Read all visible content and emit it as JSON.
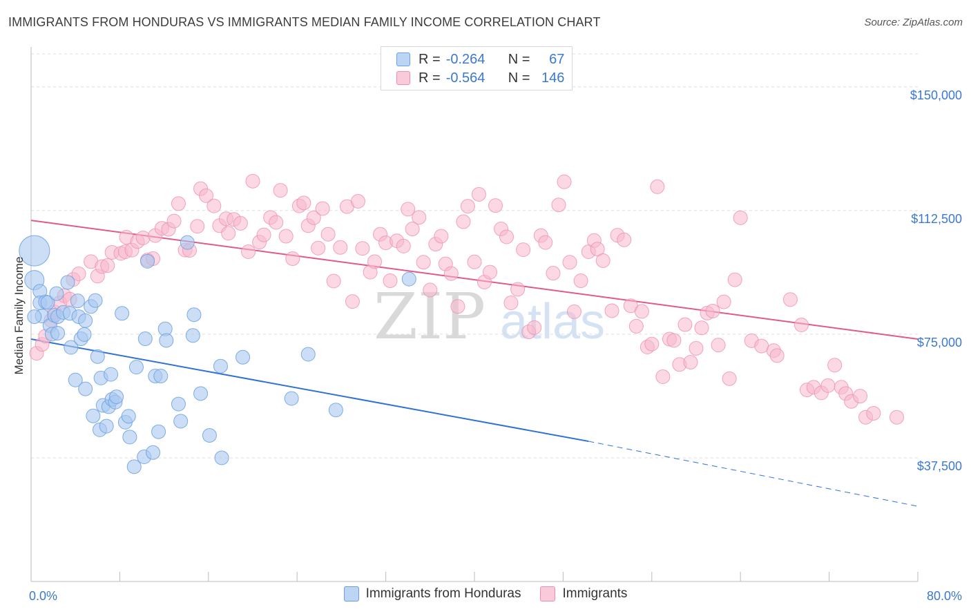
{
  "header": {
    "title": "IMMIGRANTS FROM HONDURAS VS IMMIGRANTS MEDIAN FAMILY INCOME CORRELATION CHART",
    "source": "Source: ZipAtlas.com"
  },
  "watermark": {
    "zip": "ZIP",
    "atlas": "atlas"
  },
  "legend": {
    "r_label": "R =",
    "n_label": "N =",
    "honduras": {
      "r": "-0.264",
      "n": "67"
    },
    "immigrants": {
      "r": "-0.564",
      "n": "146"
    }
  },
  "colors": {
    "honduras_fill": "#a9c8f0",
    "honduras_stroke": "#6a9fe0",
    "honduras_line": "#2f72d6",
    "immigrants_fill": "#f7b8cc",
    "immigrants_stroke": "#ee8fb0",
    "immigrants_line": "#e2588a",
    "axis_value": "#3b78d0",
    "grid": "#dddddd"
  },
  "chart_data": {
    "type": "scatter",
    "title": "IMMIGRANTS FROM HONDURAS VS IMMIGRANTS MEDIAN FAMILY INCOME CORRELATION CHART",
    "xlabel": "",
    "ylabel": "Median Family Income",
    "xlim": [
      0,
      80
    ],
    "ylim": [
      0,
      160000
    ],
    "x_tick_labels": [
      "0.0%",
      "80.0%"
    ],
    "y_ticks": [
      37500,
      75000,
      112500,
      150000
    ],
    "y_tick_labels": [
      "$37,500",
      "$75,000",
      "$112,500",
      "$150,000"
    ],
    "grid": true,
    "legend_position": "top-center",
    "series": [
      {
        "name": "Immigrants from Honduras",
        "key": "honduras",
        "trend": {
          "x0": 0,
          "y0": 73500,
          "x1": 50.3,
          "y1": 42500,
          "dash_to_x": 80,
          "dash_to_y": 22800
        },
        "points": [
          [
            0.3,
            100300,
            2.2
          ],
          [
            0.3,
            91400,
            1.4
          ],
          [
            0.8,
            88000,
            1.0
          ],
          [
            0.8,
            84500,
            1.0
          ],
          [
            1.0,
            80500,
            1.0
          ],
          [
            1.3,
            84800,
            1.0
          ],
          [
            1.5,
            84600,
            1.0
          ],
          [
            1.7,
            77600,
            1.0
          ],
          [
            1.9,
            75000,
            1.0
          ],
          [
            2.1,
            80700,
            1.0
          ],
          [
            2.3,
            87300,
            1.0
          ],
          [
            2.4,
            80300,
            1.0
          ],
          [
            2.4,
            75300,
            1.0
          ],
          [
            2.9,
            81600,
            1.0
          ],
          [
            3.3,
            90700,
            1.0
          ],
          [
            3.5,
            81300,
            1.0
          ],
          [
            3.6,
            71000,
            1.0
          ],
          [
            4.2,
            85100,
            1.0
          ],
          [
            4.3,
            80300,
            1.0
          ],
          [
            4.5,
            73600,
            1.0
          ],
          [
            4.0,
            61100,
            1.0
          ],
          [
            4.9,
            79100,
            1.0
          ],
          [
            4.9,
            58400,
            1.0
          ],
          [
            4.8,
            74900,
            1.0
          ],
          [
            5.4,
            83400,
            1.0
          ],
          [
            5.6,
            50200,
            1.0
          ],
          [
            5.8,
            85200,
            1.0
          ],
          [
            6.0,
            68200,
            1.0
          ],
          [
            6.2,
            46000,
            1.0
          ],
          [
            6.3,
            61700,
            1.0
          ],
          [
            6.5,
            53400,
            1.0
          ],
          [
            6.8,
            47100,
            1.0
          ],
          [
            7.0,
            53000,
            1.0
          ],
          [
            7.2,
            62800,
            1.0
          ],
          [
            7.3,
            55200,
            1.0
          ],
          [
            7.6,
            54400,
            1.0
          ],
          [
            7.7,
            56000,
            1.0
          ],
          [
            8.2,
            81300,
            1.0
          ],
          [
            8.5,
            48300,
            1.0
          ],
          [
            8.8,
            50100,
            1.0
          ],
          [
            8.9,
            43800,
            1.0
          ],
          [
            9.3,
            34800,
            1.0
          ],
          [
            9.5,
            65000,
            1.0
          ],
          [
            10.2,
            37800,
            1.0
          ],
          [
            10.3,
            73600,
            1.0
          ],
          [
            10.5,
            97100,
            1.0
          ],
          [
            11.0,
            39100,
            1.0
          ],
          [
            11.2,
            62300,
            1.0
          ],
          [
            11.5,
            45400,
            1.0
          ],
          [
            11.7,
            62300,
            1.0
          ],
          [
            12.1,
            76600,
            1.0
          ],
          [
            12.2,
            73100,
            1.0
          ],
          [
            13.3,
            53800,
            1.0
          ],
          [
            13.5,
            48600,
            1.0
          ],
          [
            14.1,
            102800,
            1.0
          ],
          [
            14.6,
            74600,
            1.0
          ],
          [
            14.7,
            80900,
            1.0
          ],
          [
            15.3,
            57000,
            1.0
          ],
          [
            16.1,
            44300,
            1.0
          ],
          [
            17.1,
            65300,
            1.0
          ],
          [
            17.2,
            37500,
            1.0
          ],
          [
            19.1,
            68000,
            1.0
          ],
          [
            23.5,
            55500,
            1.0
          ],
          [
            25.0,
            68900,
            1.0
          ],
          [
            27.5,
            52000,
            1.0
          ],
          [
            34.1,
            91700,
            1.0
          ],
          [
            0.3,
            80300,
            1.0
          ]
        ]
      },
      {
        "name": "Immigrants",
        "key": "immigrants",
        "trend": {
          "x0": 0,
          "y0": 109500,
          "x1": 80,
          "y1": 73500
        },
        "points": [
          [
            0.5,
            69200
          ],
          [
            1.0,
            71900
          ],
          [
            1.3,
            74400
          ],
          [
            1.8,
            79200
          ],
          [
            2.1,
            81700
          ],
          [
            2.6,
            84500
          ],
          [
            3.0,
            86700
          ],
          [
            3.5,
            85600
          ],
          [
            3.8,
            91600
          ],
          [
            4.3,
            93300
          ],
          [
            5.4,
            97000
          ],
          [
            6.0,
            92600
          ],
          [
            6.4,
            95500
          ],
          [
            6.9,
            95800
          ],
          [
            7.3,
            99800
          ],
          [
            8.1,
            99500
          ],
          [
            8.5,
            100000
          ],
          [
            8.6,
            104400
          ],
          [
            9.1,
            100500
          ],
          [
            9.6,
            103100
          ],
          [
            10.1,
            104200
          ],
          [
            10.5,
            97500
          ],
          [
            11.0,
            97900
          ],
          [
            11.2,
            104900
          ],
          [
            11.8,
            107100
          ],
          [
            12.4,
            106800
          ],
          [
            12.9,
            109300
          ],
          [
            13.3,
            114600
          ],
          [
            13.9,
            100500
          ],
          [
            14.3,
            100400
          ],
          [
            15.0,
            107700
          ],
          [
            15.3,
            119100
          ],
          [
            15.8,
            117000
          ],
          [
            16.5,
            113900
          ],
          [
            17.0,
            107900
          ],
          [
            17.6,
            110000
          ],
          [
            17.8,
            105600
          ],
          [
            18.3,
            109800
          ],
          [
            18.9,
            108600
          ],
          [
            19.6,
            100000
          ],
          [
            20.0,
            121400
          ],
          [
            20.6,
            102900
          ],
          [
            21.0,
            105100
          ],
          [
            21.6,
            110400
          ],
          [
            22.1,
            108900
          ],
          [
            22.5,
            118600
          ],
          [
            23.0,
            104700
          ],
          [
            23.6,
            97900
          ],
          [
            24.2,
            113900
          ],
          [
            24.6,
            114800
          ],
          [
            25.0,
            107900
          ],
          [
            25.5,
            110300
          ],
          [
            25.9,
            101100
          ],
          [
            26.3,
            113100
          ],
          [
            26.8,
            105300
          ],
          [
            27.3,
            91100
          ],
          [
            27.9,
            101300
          ],
          [
            28.5,
            113700
          ],
          [
            29.0,
            84900
          ],
          [
            29.5,
            115300
          ],
          [
            29.9,
            101000
          ],
          [
            30.6,
            93800
          ],
          [
            31.0,
            97000
          ],
          [
            31.5,
            105300
          ],
          [
            32.0,
            102700
          ],
          [
            32.4,
            91200
          ],
          [
            33.0,
            103300
          ],
          [
            33.6,
            101700
          ],
          [
            34.0,
            112900
          ],
          [
            34.4,
            106900
          ],
          [
            35.0,
            110400
          ],
          [
            35.4,
            96800
          ],
          [
            36.0,
            88400
          ],
          [
            36.5,
            102300
          ],
          [
            37.0,
            104700
          ],
          [
            37.4,
            96300
          ],
          [
            37.9,
            93400
          ],
          [
            38.5,
            83400
          ],
          [
            39.0,
            109100
          ],
          [
            39.4,
            113800
          ],
          [
            40.0,
            96900
          ],
          [
            40.4,
            117400
          ],
          [
            40.9,
            90800
          ],
          [
            41.4,
            93800
          ],
          [
            41.9,
            114000
          ],
          [
            42.4,
            106900
          ],
          [
            42.9,
            104500
          ],
          [
            43.3,
            84500
          ],
          [
            43.9,
            88600
          ],
          [
            44.4,
            100600
          ],
          [
            44.9,
            75700
          ],
          [
            45.4,
            77000
          ],
          [
            46.0,
            104900
          ],
          [
            46.4,
            102800
          ],
          [
            47.1,
            93500
          ],
          [
            47.6,
            114200
          ],
          [
            48.1,
            121200
          ],
          [
            48.6,
            96800
          ],
          [
            49.0,
            81800
          ],
          [
            49.6,
            91200
          ],
          [
            50.3,
            100000
          ],
          [
            50.8,
            103400
          ],
          [
            51.1,
            100800
          ],
          [
            51.6,
            97300
          ],
          [
            52.4,
            82100
          ],
          [
            52.9,
            105000
          ],
          [
            53.5,
            103600
          ],
          [
            54.1,
            83600
          ],
          [
            54.6,
            77400
          ],
          [
            55.1,
            81900
          ],
          [
            55.6,
            71100
          ],
          [
            56.0,
            72000
          ],
          [
            56.5,
            119700
          ],
          [
            57.0,
            62100
          ],
          [
            57.6,
            73500
          ],
          [
            58.0,
            73100
          ],
          [
            58.5,
            65800
          ],
          [
            59.0,
            77900
          ],
          [
            59.5,
            66500
          ],
          [
            60.0,
            70700
          ],
          [
            60.5,
            76900
          ],
          [
            61.0,
            81400
          ],
          [
            61.5,
            82000
          ],
          [
            62.0,
            71700
          ],
          [
            62.5,
            84800
          ],
          [
            63.0,
            61500
          ],
          [
            63.5,
            91500
          ],
          [
            64.0,
            110300
          ],
          [
            65.0,
            73000
          ],
          [
            65.9,
            71400
          ],
          [
            67.0,
            70000
          ],
          [
            67.3,
            68500
          ],
          [
            68.5,
            85500
          ],
          [
            69.5,
            77800
          ],
          [
            70.0,
            58100
          ],
          [
            70.6,
            58900
          ],
          [
            71.3,
            57200
          ],
          [
            71.9,
            59400
          ],
          [
            72.5,
            65600
          ],
          [
            73.1,
            58900
          ],
          [
            73.5,
            57000
          ],
          [
            74.0,
            54600
          ],
          [
            74.8,
            56200
          ],
          [
            75.3,
            49800
          ],
          [
            76.0,
            51000
          ],
          [
            78.1,
            49800
          ]
        ]
      }
    ]
  },
  "bottom_legend": {
    "honduras": "Immigrants from Honduras",
    "immigrants": "Immigrants"
  }
}
